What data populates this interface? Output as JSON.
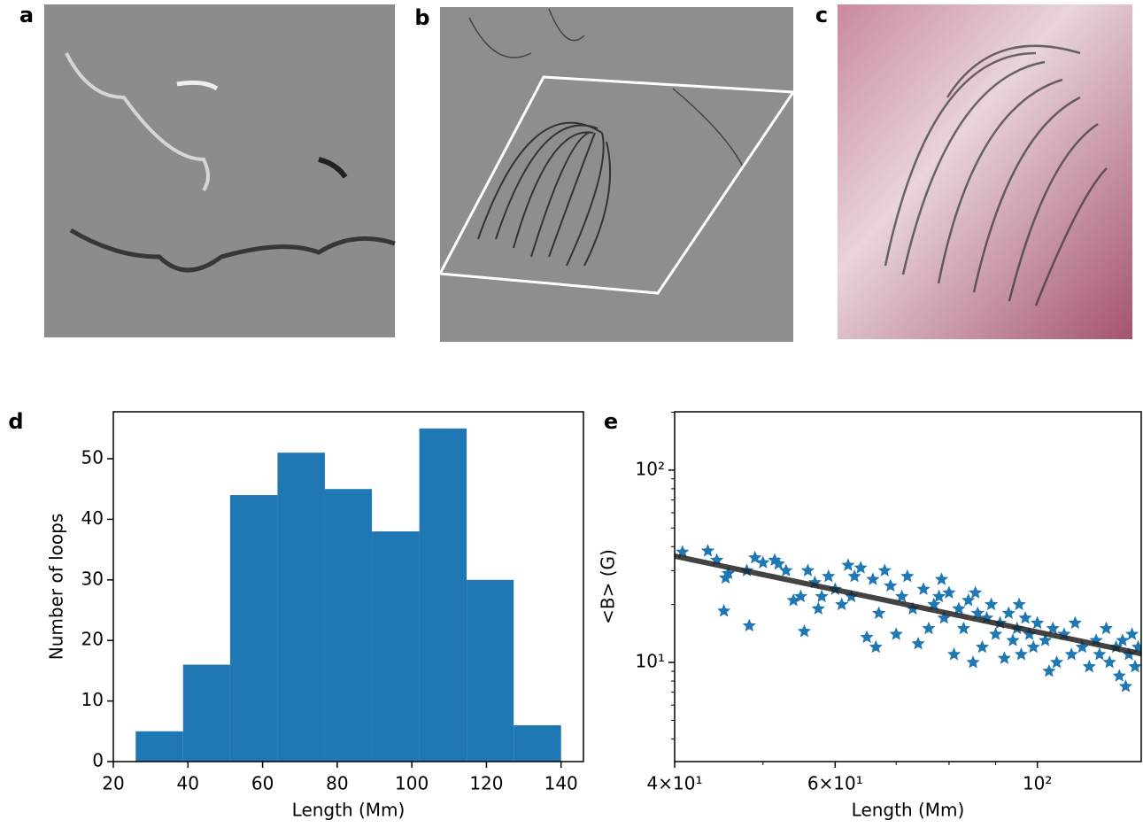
{
  "panel_labels": [
    "a",
    "b",
    "c"
  ],
  "chart_data": [
    {
      "type": "histogram",
      "label": "d",
      "bins": [
        26,
        38.7,
        51.3,
        64,
        76.7,
        89.3,
        102,
        114.7,
        127.3,
        140
      ],
      "values": [
        5,
        16,
        44,
        51,
        45,
        38,
        55,
        30,
        6
      ],
      "color": "#1f77b4",
      "xlim": [
        20,
        146
      ],
      "ylim": [
        0,
        57.75
      ],
      "xticks": [
        20,
        40,
        60,
        80,
        100,
        120,
        140
      ],
      "yticks": [
        0,
        10,
        20,
        30,
        40,
        50
      ],
      "xlabel": "Length (Mm)",
      "ylabel": "Number of loops"
    },
    {
      "type": "scatter",
      "label": "e",
      "xscale": "log",
      "yscale": "log",
      "xlim": [
        40,
        130
      ],
      "ylim": [
        3.05,
        201
      ],
      "xticks": [
        {
          "value": 40,
          "label": "4×10¹"
        },
        {
          "value": 60,
          "label": "6×10¹"
        },
        {
          "value": 100,
          "label": "10²"
        }
      ],
      "yticks": [
        {
          "value": 10,
          "label": "10¹"
        },
        {
          "value": 100,
          "label": "10²"
        }
      ],
      "xminor": [
        50,
        70,
        80,
        90
      ],
      "yminor": [
        4,
        5,
        6,
        7,
        8,
        9,
        20,
        30,
        40,
        50,
        60,
        70,
        80,
        90,
        200
      ],
      "xlabel": "Length (Mm)",
      "ylabel": "<B> (G)",
      "series": [
        {
          "type": "scatter",
          "marker": "star",
          "color": "#1f77b4",
          "x": [
            40.8,
            43.5,
            44.5,
            45.5,
            45.3,
            48,
            48.3,
            49,
            50,
            51.5,
            52,
            53,
            54,
            55,
            55.5,
            56,
            57,
            58,
            59,
            60,
            61,
            62,
            63,
            64,
            65,
            66,
            67,
            68,
            69,
            70,
            71,
            72,
            73,
            74,
            75,
            76,
            77,
            78,
            79,
            80,
            81,
            82,
            83,
            84,
            85,
            86,
            87,
            88,
            89,
            90,
            91,
            92,
            93,
            94,
            95,
            96,
            97,
            98,
            99,
            100,
            102,
            104,
            105,
            107,
            109,
            110,
            112,
            114,
            116,
            117,
            119,
            120,
            122,
            123,
            124,
            125,
            126,
            127,
            128,
            129,
            45.8,
            57.5,
            62.5,
            66.5,
            78.5,
            85.5,
            95.5,
            103
          ],
          "values": [
            37.5,
            38,
            34,
            27.5,
            18.5,
            30,
            15.5,
            35,
            33,
            34,
            32.5,
            30,
            21,
            22,
            14.5,
            30,
            26,
            22,
            28,
            24,
            20,
            32,
            28,
            31,
            13.5,
            27,
            18,
            30,
            25,
            14,
            22,
            28,
            19,
            12.5,
            24,
            15,
            20,
            22,
            17,
            23,
            11,
            19,
            15,
            21,
            10,
            18,
            12,
            17,
            20,
            14,
            16,
            10.5,
            18,
            13,
            15,
            11,
            17,
            14,
            12,
            16,
            13,
            15,
            10,
            14,
            11,
            16,
            12,
            9.5,
            13,
            11,
            15,
            10,
            12,
            8.5,
            13,
            7.5,
            11,
            14,
            9.5,
            12,
            29,
            19,
            22,
            12,
            27,
            23,
            20,
            9
          ]
        },
        {
          "type": "line",
          "color": "#222222",
          "x": [
            40,
            130
          ],
          "values": [
            35.7,
            11.1
          ]
        }
      ]
    }
  ]
}
